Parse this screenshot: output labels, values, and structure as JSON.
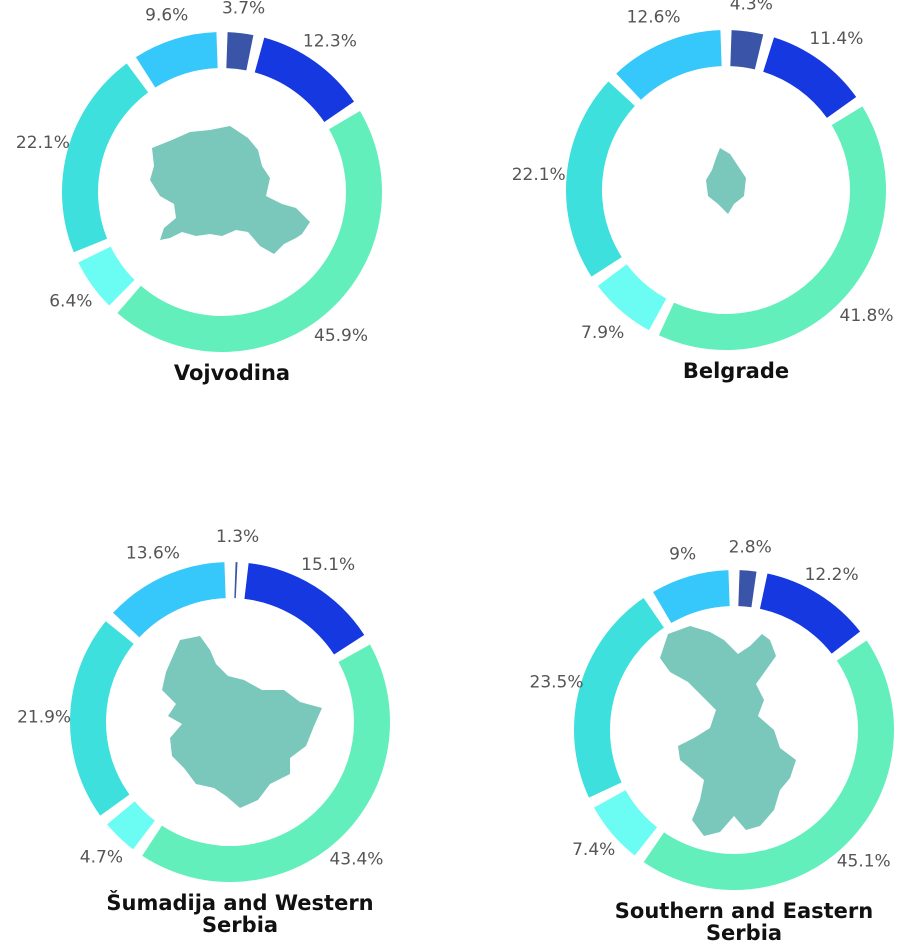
{
  "chart_data": [
    {
      "type": "pie",
      "variant": "donut",
      "title_lines": [
        "Vojvodina"
      ],
      "values": [
        3.7,
        12.3,
        45.9,
        6.4,
        22.1,
        9.6
      ],
      "labels": [
        "3.7%",
        "12.3%",
        "45.9%",
        "6.4%",
        "22.1%",
        "9.6%"
      ]
    },
    {
      "type": "pie",
      "variant": "donut",
      "title_lines": [
        "Belgrade"
      ],
      "values": [
        4.3,
        11.4,
        41.8,
        7.9,
        22.1,
        12.6
      ],
      "labels": [
        "4.3%",
        "11.4%",
        "41.8%",
        "7.9%",
        "22.1%",
        "12.6%"
      ]
    },
    {
      "type": "pie",
      "variant": "donut",
      "title_lines": [
        "Šumadija and Western",
        "Serbia"
      ],
      "values": [
        1.3,
        15.1,
        43.4,
        4.7,
        21.9,
        13.6
      ],
      "labels": [
        "1.3%",
        "15.1%",
        "43.4%",
        "4.7%",
        "21.9%",
        "13.6%"
      ]
    },
    {
      "type": "pie",
      "variant": "donut",
      "title_lines": [
        "Southern and Eastern",
        "Serbia"
      ],
      "values": [
        2.8,
        12.2,
        45.1,
        7.4,
        23.5,
        9
      ],
      "labels": [
        "2.8%",
        "12.2%",
        "45.1%",
        "7.4%",
        "23.5%",
        "9%"
      ]
    }
  ],
  "colors": {
    "segments": [
      "#3a55a8",
      "#1538e0",
      "#62efbc",
      "#6bfcf3",
      "#3de0dc",
      "#36c8fb"
    ],
    "map": "#7ac8bb",
    "label": "#555555",
    "title": "#111111"
  },
  "map_icons": [
    "vojvodina-region-shape",
    "belgrade-region-shape",
    "sumadija-region-shape",
    "southern-eastern-region-shape"
  ]
}
